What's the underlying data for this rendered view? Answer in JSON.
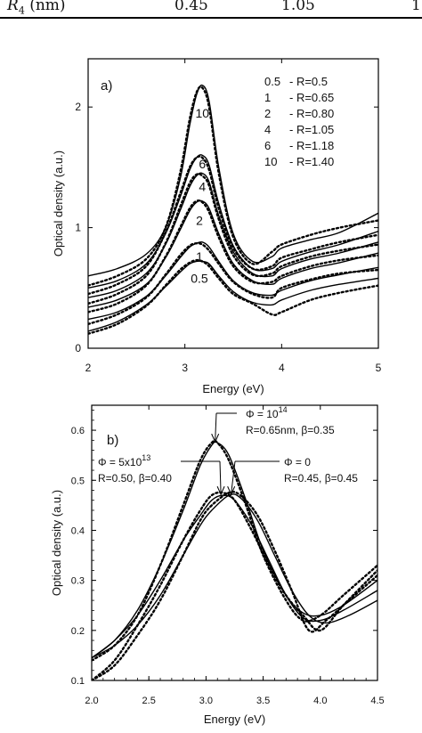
{
  "table_fragment": {
    "row_label_html": "R",
    "row_label_sub": "4",
    "row_label_unit": "(nm)",
    "values": [
      "0.45",
      "1.05",
      "1"
    ]
  },
  "chart_data": [
    {
      "panel_label": "a)",
      "type": "line",
      "xlabel": "Energy (eV)",
      "ylabel": "Optical density (a.u.)",
      "xlim": [
        2,
        5
      ],
      "ylim": [
        0,
        2.4
      ],
      "xticks": [
        "2",
        "3",
        "4",
        "5"
      ],
      "yticks": [
        "0",
        "1",
        "2"
      ],
      "legend": {
        "placement": "top-right",
        "entries": [
          {
            "phi": "0.5",
            "label": "- R=0.5"
          },
          {
            "phi": "1",
            "label": "- R=0.65"
          },
          {
            "phi": "2",
            "label": "- R=0.80"
          },
          {
            "phi": "4",
            "label": "- R=1.05"
          },
          {
            "phi": "6",
            "label": "- R=1.18"
          },
          {
            "phi": "10",
            "label": "- R=1.40"
          }
        ]
      },
      "curve_labels": [
        {
          "text": "10",
          "x": 3.18,
          "y": 1.95
        },
        {
          "text": "6",
          "x": 3.18,
          "y": 1.53
        },
        {
          "text": "4",
          "x": 3.18,
          "y": 1.34
        },
        {
          "text": "2",
          "x": 3.15,
          "y": 1.06
        },
        {
          "text": "1",
          "x": 3.15,
          "y": 0.76
        },
        {
          "text": "0.5",
          "x": 3.15,
          "y": 0.58
        }
      ],
      "series": [
        {
          "x": [
            2.0,
            2.3,
            2.6,
            2.8,
            2.95,
            3.05,
            3.12,
            3.18,
            3.25,
            3.35,
            3.5,
            3.7,
            3.9,
            4.0,
            4.3,
            4.6,
            5.0
          ],
          "y": [
            0.6,
            0.66,
            0.78,
            1.0,
            1.4,
            1.85,
            2.1,
            2.18,
            2.05,
            1.5,
            0.95,
            0.72,
            0.76,
            0.83,
            0.9,
            0.96,
            1.12
          ],
          "dotted": [
            0.52,
            0.6,
            0.74,
            1.0,
            1.45,
            1.9,
            2.12,
            2.16,
            2.0,
            1.45,
            0.92,
            0.7,
            0.8,
            0.86,
            0.94,
            1.0,
            1.06
          ]
        },
        {
          "x": [
            2.0,
            2.3,
            2.6,
            2.8,
            2.95,
            3.05,
            3.12,
            3.18,
            3.25,
            3.35,
            3.5,
            3.7,
            3.9,
            4.0,
            4.3,
            4.6,
            5.0
          ],
          "y": [
            0.5,
            0.56,
            0.7,
            0.95,
            1.25,
            1.48,
            1.58,
            1.6,
            1.52,
            1.2,
            0.85,
            0.66,
            0.66,
            0.72,
            0.8,
            0.86,
            0.97
          ],
          "dotted": [
            0.45,
            0.53,
            0.68,
            0.96,
            1.28,
            1.5,
            1.58,
            1.58,
            1.48,
            1.16,
            0.83,
            0.66,
            0.68,
            0.75,
            0.82,
            0.88,
            0.94
          ]
        },
        {
          "x": [
            2.0,
            2.3,
            2.6,
            2.8,
            2.95,
            3.05,
            3.12,
            3.18,
            3.25,
            3.35,
            3.5,
            3.7,
            3.9,
            4.0,
            4.3,
            4.6,
            5.0
          ],
          "y": [
            0.42,
            0.48,
            0.62,
            0.86,
            1.14,
            1.34,
            1.43,
            1.45,
            1.38,
            1.1,
            0.8,
            0.62,
            0.6,
            0.66,
            0.74,
            0.79,
            0.88
          ],
          "dotted": [
            0.37,
            0.45,
            0.6,
            0.87,
            1.17,
            1.37,
            1.44,
            1.43,
            1.35,
            1.07,
            0.77,
            0.61,
            0.62,
            0.68,
            0.76,
            0.81,
            0.86
          ]
        },
        {
          "x": [
            2.0,
            2.3,
            2.6,
            2.8,
            2.95,
            3.05,
            3.12,
            3.18,
            3.25,
            3.35,
            3.5,
            3.7,
            3.9,
            4.0,
            4.3,
            4.6,
            5.0
          ],
          "y": [
            0.34,
            0.4,
            0.53,
            0.75,
            0.98,
            1.14,
            1.21,
            1.22,
            1.16,
            0.95,
            0.7,
            0.56,
            0.53,
            0.58,
            0.66,
            0.71,
            0.79
          ],
          "dotted": [
            0.3,
            0.37,
            0.52,
            0.76,
            1.0,
            1.16,
            1.22,
            1.21,
            1.13,
            0.92,
            0.68,
            0.55,
            0.55,
            0.6,
            0.68,
            0.73,
            0.77
          ]
        },
        {
          "x": [
            2.0,
            2.3,
            2.6,
            2.8,
            2.95,
            3.05,
            3.12,
            3.18,
            3.25,
            3.35,
            3.5,
            3.7,
            3.9,
            4.0,
            4.3,
            4.6,
            5.0
          ],
          "y": [
            0.24,
            0.3,
            0.43,
            0.6,
            0.75,
            0.84,
            0.87,
            0.88,
            0.84,
            0.72,
            0.56,
            0.46,
            0.44,
            0.48,
            0.56,
            0.61,
            0.67
          ],
          "dotted": [
            0.2,
            0.28,
            0.42,
            0.61,
            0.77,
            0.85,
            0.87,
            0.86,
            0.81,
            0.7,
            0.55,
            0.45,
            0.42,
            0.5,
            0.57,
            0.62,
            0.65
          ]
        },
        {
          "x": [
            2.0,
            2.3,
            2.6,
            2.8,
            2.95,
            3.05,
            3.12,
            3.18,
            3.25,
            3.35,
            3.5,
            3.7,
            3.9,
            4.0,
            4.3,
            4.6,
            5.0
          ],
          "y": [
            0.14,
            0.22,
            0.36,
            0.51,
            0.63,
            0.7,
            0.72,
            0.72,
            0.7,
            0.6,
            0.47,
            0.38,
            0.36,
            0.4,
            0.48,
            0.53,
            0.58
          ],
          "dotted": [
            0.12,
            0.2,
            0.35,
            0.52,
            0.65,
            0.71,
            0.73,
            0.72,
            0.68,
            0.58,
            0.45,
            0.37,
            0.28,
            0.3,
            0.4,
            0.46,
            0.52
          ]
        }
      ]
    },
    {
      "panel_label": "b)",
      "type": "line",
      "xlabel": "Energy (eV)",
      "ylabel": "Optical density (a.u.)",
      "xlim": [
        2.0,
        4.5
      ],
      "ylim": [
        0.1,
        0.65
      ],
      "xticks": [
        "2.0",
        "2.5",
        "3.0",
        "3.5",
        "4.0",
        "4.5"
      ],
      "yticks": [
        "0.1",
        "0.2",
        "0.3",
        "0.4",
        "0.5",
        "0.6"
      ],
      "annotations": [
        {
          "line1": "Φ = 10",
          "sup": "14",
          "line2": "R=0.65nm, β=0.35",
          "arrow_x": 3.08,
          "arrow_y": 0.575
        },
        {
          "line1": "Φ = 5x10",
          "sup": "13",
          "line2": "R=0.50, β=0.40",
          "arrow_x": 3.13,
          "arrow_y": 0.47
        },
        {
          "line1": "Φ = 0",
          "sup": "",
          "line2": "R=0.45, β=0.45",
          "arrow_x": 3.22,
          "arrow_y": 0.47
        }
      ],
      "series": [
        {
          "name": "Φ = 10^14",
          "x": [
            2.0,
            2.2,
            2.4,
            2.6,
            2.8,
            2.95,
            3.05,
            3.1,
            3.2,
            3.35,
            3.5,
            3.7,
            3.85,
            4.0,
            4.2,
            4.5
          ],
          "y": [
            0.145,
            0.18,
            0.24,
            0.33,
            0.44,
            0.53,
            0.57,
            0.575,
            0.55,
            0.46,
            0.36,
            0.27,
            0.235,
            0.23,
            0.25,
            0.3
          ],
          "dotted": [
            0.14,
            0.17,
            0.23,
            0.33,
            0.45,
            0.54,
            0.575,
            0.575,
            0.54,
            0.45,
            0.35,
            0.26,
            0.22,
            0.23,
            0.27,
            0.33
          ]
        },
        {
          "name": "Φ = 5x10^13",
          "x": [
            2.0,
            2.2,
            2.4,
            2.6,
            2.8,
            2.95,
            3.05,
            3.15,
            3.25,
            3.4,
            3.55,
            3.7,
            3.85,
            4.0,
            4.2,
            4.5
          ],
          "y": [
            0.145,
            0.18,
            0.23,
            0.3,
            0.38,
            0.43,
            0.46,
            0.47,
            0.46,
            0.41,
            0.34,
            0.27,
            0.225,
            0.22,
            0.24,
            0.28
          ],
          "dotted": [
            0.1,
            0.14,
            0.21,
            0.29,
            0.38,
            0.44,
            0.47,
            0.475,
            0.46,
            0.4,
            0.33,
            0.27,
            0.23,
            0.2,
            0.25,
            0.32
          ]
        },
        {
          "name": "Φ = 0",
          "x": [
            2.0,
            2.2,
            2.4,
            2.6,
            2.8,
            2.95,
            3.05,
            3.2,
            3.3,
            3.45,
            3.6,
            3.75,
            3.9,
            4.05,
            4.25,
            4.5
          ],
          "y": [
            0.145,
            0.17,
            0.21,
            0.27,
            0.35,
            0.41,
            0.44,
            0.47,
            0.465,
            0.42,
            0.35,
            0.28,
            0.23,
            0.215,
            0.23,
            0.26
          ],
          "dotted": [
            0.1,
            0.13,
            0.19,
            0.26,
            0.35,
            0.42,
            0.45,
            0.475,
            0.47,
            0.43,
            0.36,
            0.28,
            0.2,
            0.22,
            0.26,
            0.31
          ]
        }
      ]
    }
  ]
}
